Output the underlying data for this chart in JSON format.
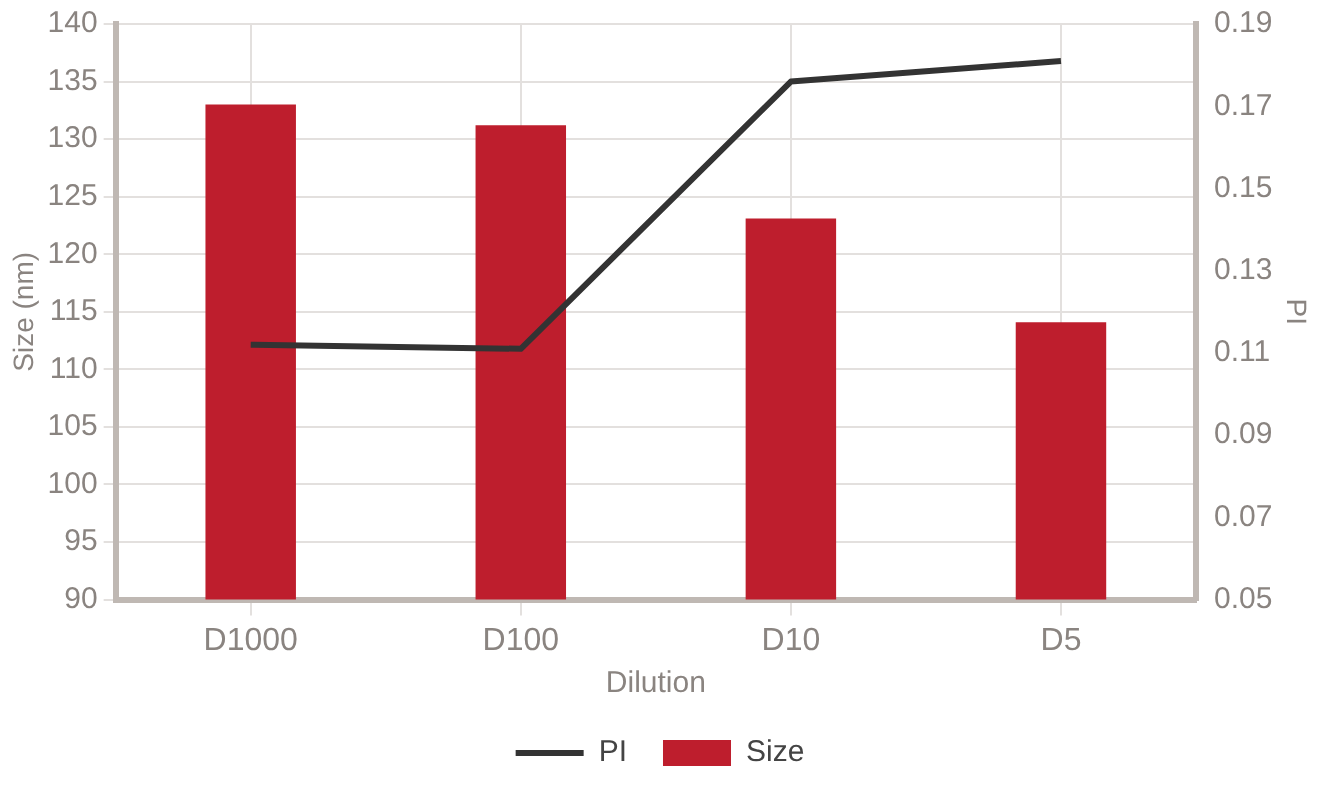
{
  "chart_data": {
    "type": "bar",
    "xlabel": "Dilution",
    "ylabel": "Size (nm)",
    "y2label": "PI",
    "categories": [
      "D1000",
      "D100",
      "D10",
      "D5"
    ],
    "series": [
      {
        "name": "Size",
        "color": "#be1e2d",
        "values": [
          133,
          131.2,
          123.1,
          114.1
        ]
      },
      {
        "name": "PI",
        "type": "line",
        "axis": "y2",
        "color": "#333333",
        "values": [
          0.112,
          0.111,
          0.176,
          0.181
        ]
      }
    ],
    "ylim": [
      90,
      140
    ],
    "yticks": [
      90,
      95,
      100,
      105,
      110,
      115,
      120,
      125,
      130,
      135,
      140
    ],
    "y2lim": [
      0.05,
      0.19
    ],
    "y2ticks": [
      0.05,
      0.07,
      0.09,
      0.11,
      0.13,
      0.15,
      0.17,
      0.19
    ],
    "grid": true,
    "legend": "bottom",
    "marker": "none",
    "line_style": "solid"
  }
}
